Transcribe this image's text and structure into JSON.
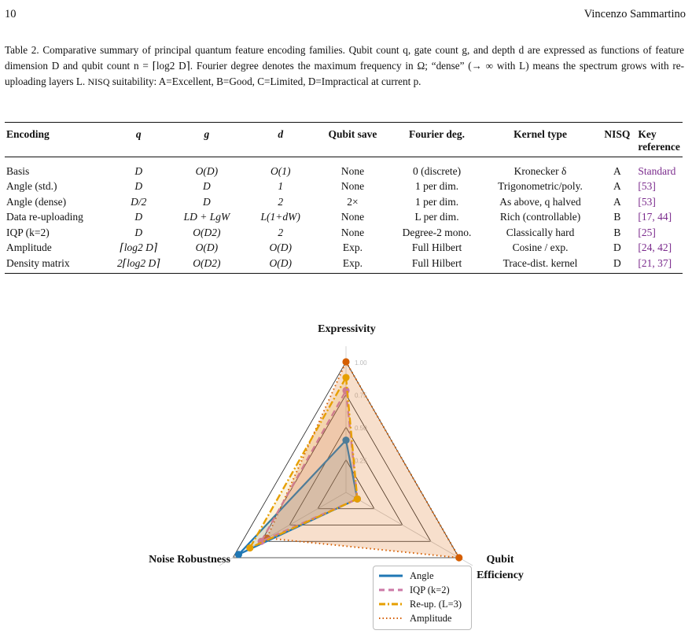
{
  "header": {
    "page_number": "10",
    "author": "Vincenzo Sammartino"
  },
  "caption": {
    "lead": "Table 2.",
    "text": "Comparative summary of principal quantum feature encoding families. Qubit count q, gate count g, and depth d are expressed as functions of feature dimension D and qubit count n = ⌈log2 D⌉. Fourier degree denotes the maximum frequency in Ω; “dense” (→ ∞ with L) means the spectrum grows with re-uploading layers L.",
    "nisq_word": "NISQ",
    "suitability_text": "suitability: A=Excellent, B=Good, C=Limited, D=Impractical at current p."
  },
  "table": {
    "headers": [
      "Encoding",
      "q",
      "g",
      "d",
      "Qubit save",
      "Fourier deg.",
      "Kernel type",
      "NISQ",
      "Key reference"
    ],
    "rows": [
      [
        "Basis",
        "D",
        "O(D)",
        "O(1)",
        "None",
        "0 (discrete)",
        "Kronecker δ",
        "A",
        "Standard"
      ],
      [
        "Angle (std.)",
        "D",
        "D",
        "1",
        "None",
        "1 per dim.",
        "Trigonometric/poly.",
        "A",
        "[53]"
      ],
      [
        "Angle (dense)",
        "D/2",
        "D",
        "2",
        "2×",
        "1 per dim.",
        "As above, q halved",
        "A",
        "[53]"
      ],
      [
        "Data re-uploading",
        "D",
        "LD + LgW",
        "L(1+dW)",
        "None",
        "L per dim.",
        "Rich (controllable)",
        "B",
        "[17, 44]"
      ],
      [
        "IQP (k=2)",
        "D",
        "O(D2)",
        "2",
        "None",
        "Degree-2 mono.",
        "Classically hard",
        "B",
        "[25]"
      ],
      [
        "Amplitude",
        "⌈log2 D⌉",
        "O(D)",
        "O(D)",
        "Exp.",
        "Full Hilbert",
        "Cosine / exp.",
        "D",
        "[24, 42]"
      ],
      [
        "Density matrix",
        "2⌈log2 D⌉",
        "O(D2)",
        "O(D)",
        "Exp.",
        "Full Hilbert",
        "Trace-dist. kernel",
        "D",
        "[21, 37]"
      ]
    ]
  },
  "chart_data": {
    "type": "radar",
    "axes": [
      "Expressivity",
      "Qubit Efficiency",
      "Noise Robustness"
    ],
    "rlim": [
      0,
      1
    ],
    "ticks": [
      "0.25",
      "0.50",
      "0.75",
      "1.00"
    ],
    "series": [
      {
        "name": "Angle",
        "values": [
          0.4,
          0.1,
          0.95
        ],
        "color": "#1f77b4",
        "style": "solid"
      },
      {
        "name": "IQP (k=2)",
        "values": [
          0.78,
          0.1,
          0.75
        ],
        "color": "#cc79a7",
        "style": "dashed"
      },
      {
        "name": "Re-up. (L=3)",
        "values": [
          0.88,
          0.1,
          0.85
        ],
        "color": "#e69f00",
        "style": "dashdot"
      },
      {
        "name": "Amplitude",
        "values": [
          1.0,
          1.0,
          0.7
        ],
        "color": "#d55e00",
        "style": "dotted"
      }
    ]
  },
  "legend": [
    "Angle",
    "IQP (k=2)",
    "Re-up. (L=3)",
    "Amplitude"
  ]
}
